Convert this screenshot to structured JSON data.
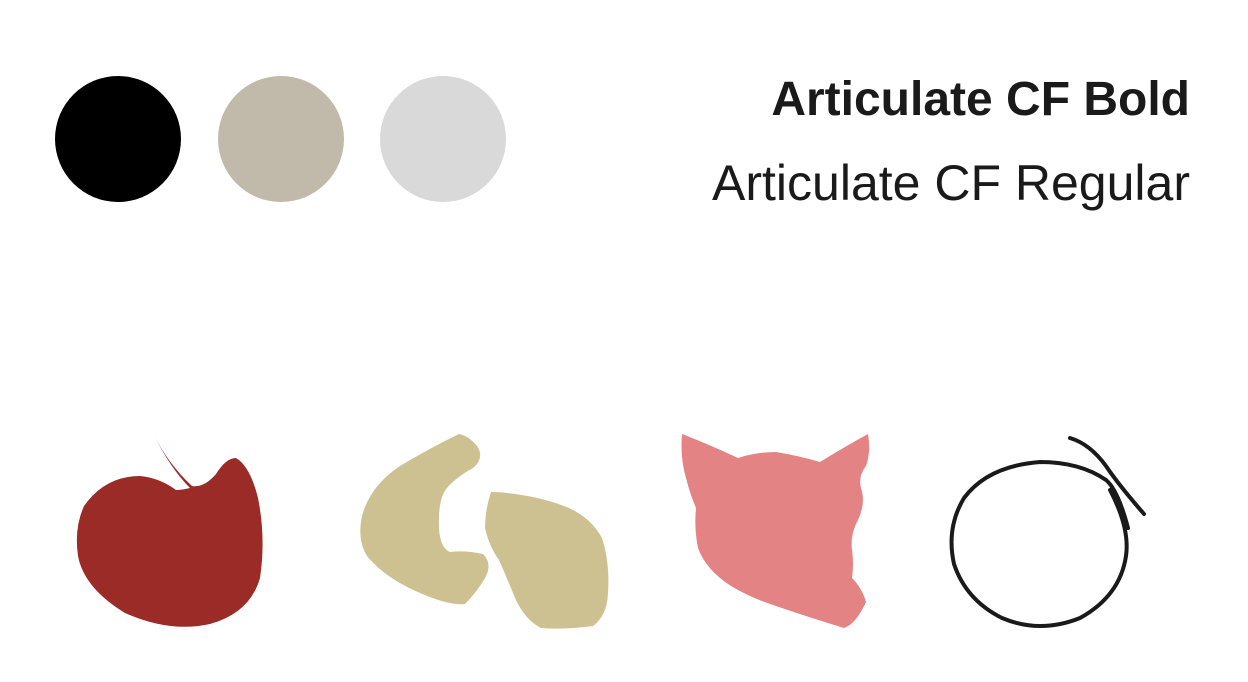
{
  "palette": {
    "colors": [
      "#000000",
      "#c1baab",
      "#d9d9d9"
    ]
  },
  "typography": {
    "bold_label": "Articulate CF Bold",
    "regular_label": "Articulate CF Regular"
  },
  "shapes": [
    {
      "name": "apple-blob",
      "color": "#9a2b27"
    },
    {
      "name": "split-blob",
      "color": "#cdc192"
    },
    {
      "name": "cat-head-blob",
      "color": "#e38383"
    },
    {
      "name": "scribble-circle",
      "color": "#1a1a1a"
    }
  ]
}
